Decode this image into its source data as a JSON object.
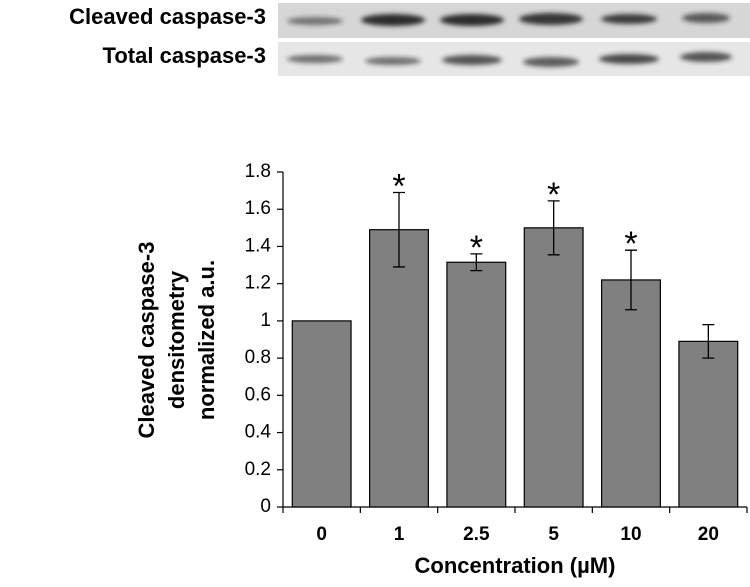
{
  "chart_data": {
    "type": "bar",
    "y_label": [
      "Cleaved caspase-3",
      "densitometry",
      "normalized a.u."
    ],
    "x_label": "Concentration (µM)",
    "categories": [
      "0",
      "1",
      "2.5",
      "5",
      "10",
      "20"
    ],
    "values": [
      1,
      1.49,
      1.315,
      1.5,
      1.22,
      0.89
    ],
    "errors": [
      null,
      0.2,
      0.045,
      0.145,
      0.16,
      0.09
    ],
    "annotations": [
      null,
      "*",
      "*",
      "*",
      "*",
      null
    ],
    "color": "#808080",
    "ylim": [
      0,
      1.8
    ],
    "yticks": [
      0,
      0.2,
      0.4,
      0.6,
      0.8,
      1,
      1.2,
      1.4,
      1.6,
      1.8
    ],
    "grid": false
  },
  "blot": {
    "rows": [
      "Cleaved caspase-3",
      "Total caspase-3"
    ]
  }
}
